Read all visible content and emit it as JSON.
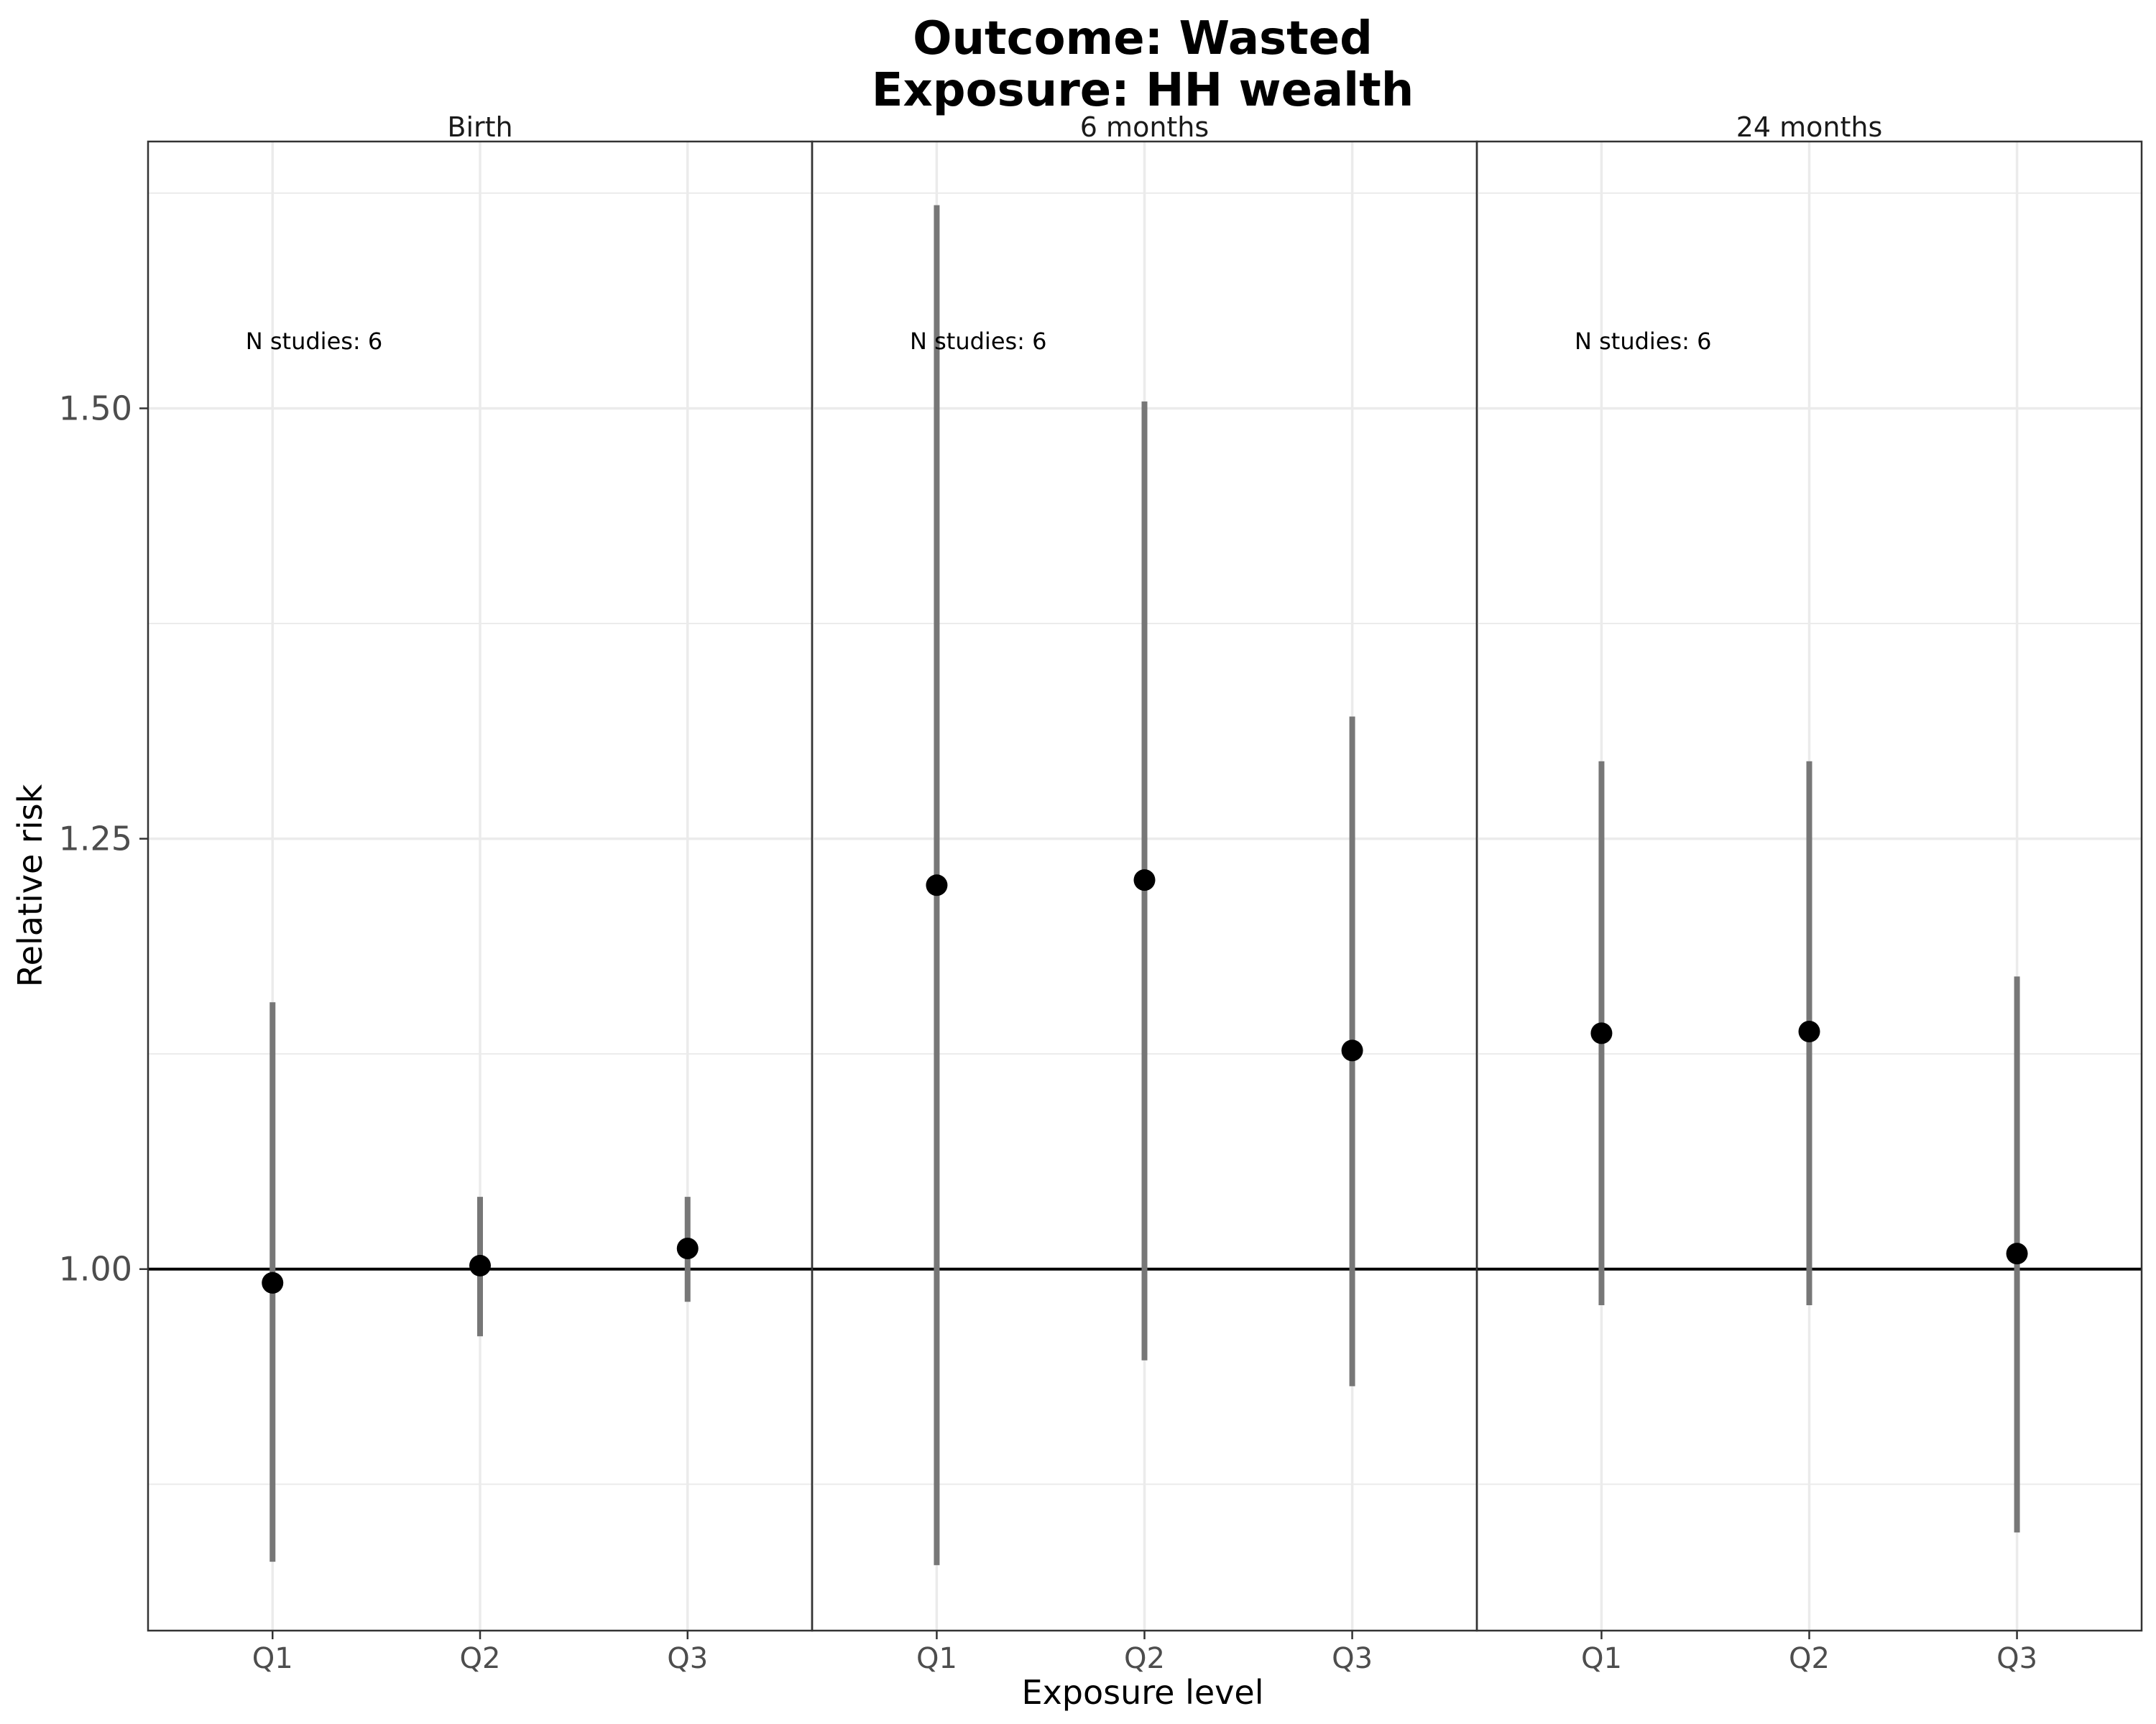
{
  "chart_data": {
    "type": "scatter",
    "title_lines": [
      "Outcome: Wasted",
      "Exposure: HH wealth"
    ],
    "xlabel": "Exposure level",
    "ylabel": "Relative risk",
    "ylim": [
      0.79,
      1.655
    ],
    "y_ticks": [
      1.0,
      1.25,
      1.5
    ],
    "y_tick_labels": [
      "1.00",
      "1.25",
      "1.50"
    ],
    "y_minor_ticks": [
      0.875,
      1.125,
      1.375,
      1.625
    ],
    "reference_line": 1.0,
    "grid": true,
    "categories": [
      "Q1",
      "Q2",
      "Q3"
    ],
    "panels": [
      {
        "label": "Birth",
        "annotation": "N studies: 6",
        "points": [
          {
            "x": "Q1",
            "estimate": 0.992,
            "lower": 0.83,
            "upper": 1.155
          },
          {
            "x": "Q2",
            "estimate": 1.002,
            "lower": 0.961,
            "upper": 1.042
          },
          {
            "x": "Q3",
            "estimate": 1.012,
            "lower": 0.981,
            "upper": 1.042
          }
        ]
      },
      {
        "label": "6 months",
        "annotation": "N studies: 6",
        "points": [
          {
            "x": "Q1",
            "estimate": 1.223,
            "lower": 0.828,
            "upper": 1.618
          },
          {
            "x": "Q2",
            "estimate": 1.226,
            "lower": 0.947,
            "upper": 1.504
          },
          {
            "x": "Q3",
            "estimate": 1.127,
            "lower": 0.932,
            "upper": 1.321
          }
        ]
      },
      {
        "label": "24 months",
        "annotation": "N studies: 6",
        "points": [
          {
            "x": "Q1",
            "estimate": 1.137,
            "lower": 0.979,
            "upper": 1.295
          },
          {
            "x": "Q2",
            "estimate": 1.138,
            "lower": 0.979,
            "upper": 1.295
          },
          {
            "x": "Q3",
            "estimate": 1.009,
            "lower": 0.847,
            "upper": 1.17
          }
        ]
      }
    ],
    "colors": {
      "point": "#000000",
      "interval": "#777777",
      "grid": "#ebebeb",
      "panel_border": "#333333",
      "reference_line": "#000000"
    }
  }
}
